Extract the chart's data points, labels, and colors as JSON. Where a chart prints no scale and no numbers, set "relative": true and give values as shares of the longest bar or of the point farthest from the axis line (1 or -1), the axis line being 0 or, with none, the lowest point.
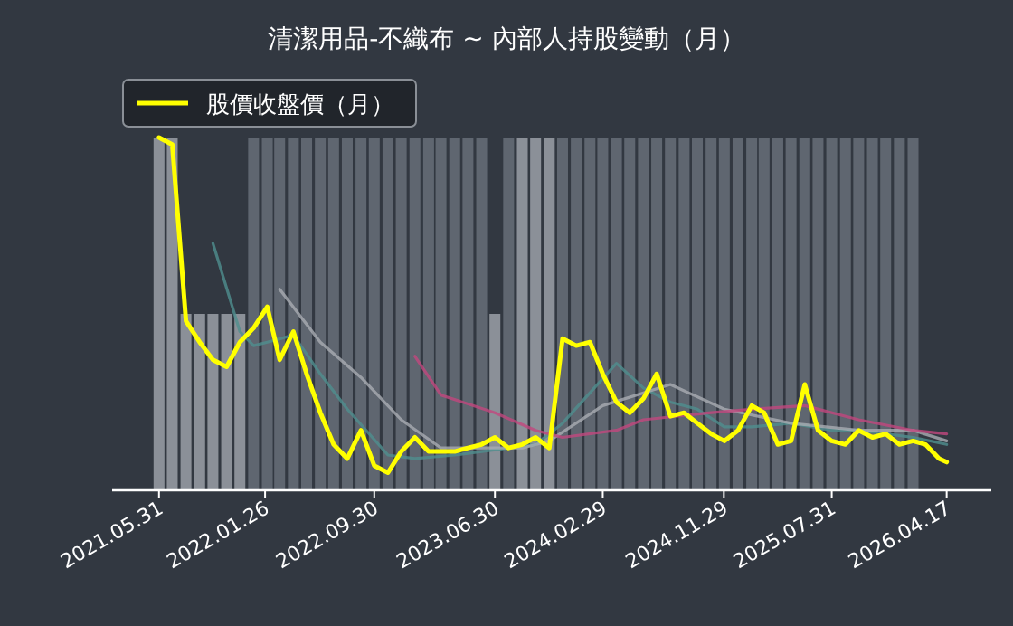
{
  "chart_data": {
    "type": "bar",
    "title": "清潔用品-不織布 ~ 內部人持股變動（月）",
    "relative": true,
    "grid": false,
    "legend": "top left",
    "xlim": [
      "2021-02-14",
      "2026-07-27"
    ],
    "xticks": [
      {
        "value": "2021-05-31",
        "label": "2021.05.31"
      },
      {
        "value": "2022-01-26",
        "label": "2022.01.26"
      },
      {
        "value": "2022-09-30",
        "label": "2022.09.30"
      },
      {
        "value": "2023-06-30",
        "label": "2023.06.30"
      },
      {
        "value": "2024-02-29",
        "label": "2024.02.29"
      },
      {
        "value": "2024-11-29",
        "label": "2024.11.29"
      },
      {
        "value": "2025-07-31",
        "label": "2025.07.31"
      },
      {
        "value": "2026-04-17",
        "label": "2026.04.17"
      }
    ],
    "x": [
      "2021-05-31",
      "2021-06-30",
      "2021-07-31",
      "2021-08-31",
      "2021-09-30",
      "2021-10-31",
      "2021-11-30",
      "2021-12-31",
      "2022-01-31",
      "2022-02-28",
      "2022-03-31",
      "2022-04-30",
      "2022-05-31",
      "2022-06-30",
      "2022-07-31",
      "2022-08-31",
      "2022-09-30",
      "2022-10-31",
      "2022-11-30",
      "2022-12-31",
      "2023-01-31",
      "2023-02-28",
      "2023-03-31",
      "2023-04-30",
      "2023-05-31",
      "2023-06-30",
      "2023-07-31",
      "2023-08-31",
      "2023-09-30",
      "2023-10-31",
      "2023-11-30",
      "2023-12-31",
      "2024-01-31",
      "2024-02-29",
      "2024-03-31",
      "2024-04-30",
      "2024-05-31",
      "2024-06-30",
      "2024-07-31",
      "2024-08-31",
      "2024-09-30",
      "2024-10-31",
      "2024-11-30",
      "2024-12-31",
      "2025-01-31",
      "2025-02-28",
      "2025-03-31",
      "2025-04-30",
      "2025-05-31",
      "2025-06-30",
      "2025-07-31",
      "2025-08-31",
      "2025-09-30",
      "2025-10-31",
      "2025-11-30",
      "2025-12-31",
      "2026-01-31"
    ],
    "series": [
      {
        "values": [
          1,
          1,
          0.5,
          0.5,
          0.5,
          0.5,
          0.5,
          1,
          1,
          1,
          1,
          1,
          1,
          1,
          1,
          1,
          1,
          1,
          1,
          1,
          1,
          1,
          1,
          1,
          1,
          0.5,
          1,
          1,
          1,
          1,
          1,
          1,
          1,
          1,
          1,
          1,
          1,
          1,
          1,
          1,
          1,
          1,
          1,
          1,
          1,
          1,
          1,
          1,
          1,
          1,
          1,
          1,
          1,
          1,
          1,
          1,
          1
        ],
        "colors": [
          "#8b9098",
          "#8b9098",
          "#8b9098",
          "#8b9098",
          "#8b9098",
          "#8b9098",
          "#8b9098",
          "#5f6670",
          "#5f6670",
          "#5f6670",
          "#5f6670",
          "#5f6670",
          "#5f6670",
          "#5f6670",
          "#5f6670",
          "#5f6670",
          "#5f6670",
          "#5f6670",
          "#5f6670",
          "#5f6670",
          "#5f6670",
          "#5f6670",
          "#5f6670",
          "#5f6670",
          "#5f6670",
          "#8b9098",
          "#5f6670",
          "#8b9098",
          "#8b9098",
          "#8b9098",
          "#5f6670",
          "#5f6670",
          "#5f6670",
          "#5f6670",
          "#5f6670",
          "#5f6670",
          "#5f6670",
          "#5f6670",
          "#5f6670",
          "#5f6670",
          "#5f6670",
          "#5f6670",
          "#5f6670",
          "#5f6670",
          "#5f6670",
          "#5f6670",
          "#5f6670",
          "#5f6670",
          "#5f6670",
          "#5f6670",
          "#5f6670",
          "#5f6670",
          "#5f6670",
          "#5f6670",
          "#5f6670",
          "#5f6670",
          "#5f6670"
        ]
      },
      {
        "type": "line",
        "color": "#4f8f8f",
        "x": [
          "2021-09-30",
          "2021-11-30",
          "2021-12-31",
          "2022-01-31",
          "2022-03-31",
          "2022-05-31",
          "2022-07-31",
          "2022-10-31",
          "2022-12-31",
          "2023-03-31",
          "2023-09-30",
          "2023-11-30",
          "2024-03-31",
          "2024-05-31",
          "2024-07-31",
          "2024-09-30",
          "2024-11-30",
          "2025-01-31",
          "2025-04-30",
          "2025-07-31",
          "2025-09-30",
          "2026-01-31",
          "2026-04-17"
        ],
        "values": [
          0.7,
          0.45,
          0.41,
          0.42,
          0.44,
          0.33,
          0.23,
          0.1,
          0.09,
          0.1,
          0.13,
          0.19,
          0.36,
          0.29,
          0.25,
          0.23,
          0.18,
          0.18,
          0.19,
          0.17,
          0.17,
          0.15,
          0.13
        ]
      },
      {
        "type": "line",
        "color": "#a9adb3",
        "x": [
          "2022-02-28",
          "2022-05-31",
          "2022-08-31",
          "2022-11-30",
          "2023-02-28",
          "2023-08-31",
          "2023-10-31",
          "2024-02-29",
          "2024-07-31",
          "2024-11-30",
          "2025-04-30",
          "2025-09-30",
          "2026-01-31",
          "2026-04-17"
        ],
        "values": [
          0.57,
          0.42,
          0.32,
          0.2,
          0.12,
          0.12,
          0.14,
          0.24,
          0.3,
          0.23,
          0.19,
          0.17,
          0.17,
          0.14
        ]
      },
      {
        "type": "line",
        "color": "#c2477e",
        "x": [
          "2022-12-31",
          "2023-02-28",
          "2023-06-30",
          "2023-09-30",
          "2023-11-30",
          "2024-03-31",
          "2024-05-31",
          "2024-10-31",
          "2025-01-31",
          "2025-05-31",
          "2025-09-30",
          "2026-01-31",
          "2026-04-17"
        ],
        "values": [
          0.38,
          0.27,
          0.22,
          0.17,
          0.15,
          0.17,
          0.2,
          0.22,
          0.23,
          0.24,
          0.2,
          0.17,
          0.16
        ]
      },
      {
        "type": "line",
        "name": "股價收盤價（月）",
        "color": "#ffff00",
        "x": [
          "2021-05-31",
          "2021-06-30",
          "2021-07-31",
          "2021-08-31",
          "2021-09-30",
          "2021-10-31",
          "2021-11-30",
          "2021-12-31",
          "2022-01-31",
          "2022-02-28",
          "2022-03-31",
          "2022-04-30",
          "2022-05-31",
          "2022-06-30",
          "2022-07-31",
          "2022-08-31",
          "2022-09-30",
          "2022-10-31",
          "2022-11-30",
          "2022-12-31",
          "2023-01-31",
          "2023-02-28",
          "2023-03-31",
          "2023-04-30",
          "2023-05-31",
          "2023-06-30",
          "2023-07-31",
          "2023-08-31",
          "2023-09-30",
          "2023-10-31",
          "2023-11-30",
          "2023-12-31",
          "2024-01-31",
          "2024-02-29",
          "2024-03-31",
          "2024-04-30",
          "2024-05-31",
          "2024-06-30",
          "2024-07-31",
          "2024-08-31",
          "2024-09-30",
          "2024-10-31",
          "2024-11-30",
          "2024-12-31",
          "2025-01-31",
          "2025-02-28",
          "2025-03-31",
          "2025-04-30",
          "2025-05-31",
          "2025-06-30",
          "2025-07-31",
          "2025-08-31",
          "2025-09-30",
          "2025-10-31",
          "2025-11-30",
          "2025-12-31",
          "2026-01-31",
          "2026-02-28",
          "2026-03-31",
          "2026-04-17"
        ],
        "values": [
          1.0,
          0.98,
          0.48,
          0.42,
          0.37,
          0.35,
          0.42,
          0.46,
          0.52,
          0.37,
          0.45,
          0.33,
          0.22,
          0.13,
          0.09,
          0.17,
          0.07,
          0.05,
          0.11,
          0.15,
          0.11,
          0.11,
          0.11,
          0.12,
          0.13,
          0.15,
          0.12,
          0.13,
          0.15,
          0.12,
          0.43,
          0.41,
          0.42,
          0.33,
          0.25,
          0.22,
          0.26,
          0.33,
          0.21,
          0.22,
          0.19,
          0.16,
          0.14,
          0.17,
          0.24,
          0.22,
          0.13,
          0.14,
          0.3,
          0.17,
          0.14,
          0.13,
          0.17,
          0.15,
          0.16,
          0.13,
          0.14,
          0.13,
          0.09,
          0.08
        ]
      }
    ]
  }
}
